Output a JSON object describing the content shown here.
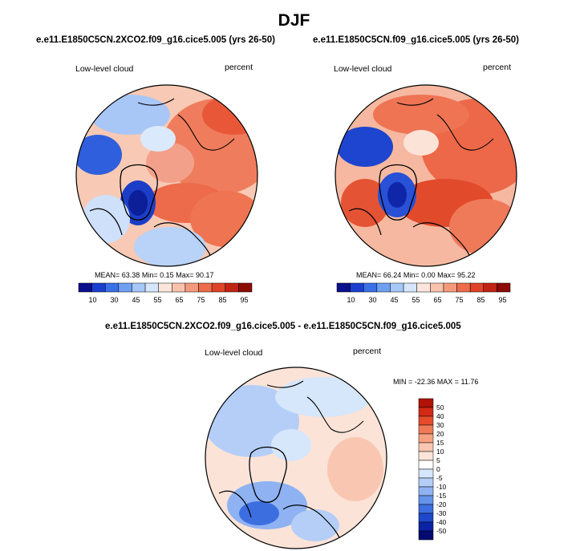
{
  "figure": {
    "season_title": "DJF"
  },
  "panels": [
    {
      "case_title": "e.e11.E1850C5CN.2XCO2.f09_g16.cice5.005 (yrs 26-50)",
      "variable": "Low-level cloud",
      "units": "percent",
      "stats": {
        "mean_label": "MEAN=",
        "mean": "63.38",
        "min_label": "Min=",
        "min": "0.15",
        "max_label": "Max=",
        "max": "90.17"
      }
    },
    {
      "case_title": "e.e11.E1850C5CN.f09_g16.cice5.005 (yrs 26-50)",
      "variable": "Low-level cloud",
      "units": "percent",
      "stats": {
        "mean_label": "MEAN=",
        "mean": "66.24",
        "min_label": "Min=",
        "min": "0.00",
        "max_label": "Max=",
        "max": "95.22"
      }
    }
  ],
  "difference_panel": {
    "title": "e.e11.E1850C5CN.2XCO2.f09_g16.cice5.005 - e.e11.E1850C5CN.f09_g16.cice5.005",
    "variable": "Low-level cloud",
    "units": "percent",
    "minmax_text": "MIN = -22.36 MAX =  11.76"
  },
  "colorbars": {
    "horizontal_labels": [
      "10",
      "30",
      "45",
      "55",
      "65",
      "75",
      "85",
      "95"
    ],
    "horizontal_colors": [
      "#0a0f8c",
      "#1a3fd0",
      "#3a70e8",
      "#6fa0f2",
      "#a6c8f8",
      "#d6e6fb",
      "#fbe5dc",
      "#f8c2ad",
      "#f49a7c",
      "#ee6c4c",
      "#e04428",
      "#c02412",
      "#8c0b06"
    ],
    "vertical_labels": [
      "50",
      "40",
      "30",
      "20",
      "15",
      "10",
      "5",
      "0",
      "-5",
      "-10",
      "-15",
      "-20",
      "-30",
      "-40",
      "-50"
    ],
    "vertical_colors": [
      "#b01208",
      "#d22a14",
      "#e64c2c",
      "#f07a56",
      "#f6a282",
      "#f9c7b1",
      "#fce4d9",
      "#ffffff",
      "#d7e6fb",
      "#b4cef7",
      "#8fb2f2",
      "#6592ea",
      "#3d6ee0",
      "#1e48cc",
      "#0c22a4",
      "#030a70"
    ]
  }
}
